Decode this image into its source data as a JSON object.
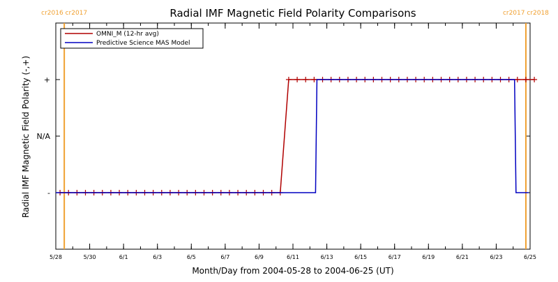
{
  "chart_data": {
    "type": "line",
    "title": "Radial IMF Magnetic Field Polarity Comparisons",
    "xlabel": "Month/Day from 2004-05-28 to 2004-06-25 (UT)",
    "ylabel": "Radial IMF Magnetic Field Polarity (-,+)",
    "x_range": [
      "2004-05-28",
      "2004-06-25"
    ],
    "x_tick_labels": [
      "5/28",
      "5/30",
      "6/1",
      "6/3",
      "6/5",
      "6/7",
      "6/9",
      "6/11",
      "6/13",
      "6/15",
      "6/17",
      "6/19",
      "6/21",
      "6/23",
      "6/25"
    ],
    "y_categories": [
      "-",
      "N/A",
      "+"
    ],
    "y_values": {
      "-": -1,
      "N/A": 0,
      "+": 1
    },
    "ylim": [
      -2,
      2
    ],
    "legend_position": "top-left",
    "carrington_markers": [
      {
        "x": "2004-05-28 12:00",
        "label": "cr2016 cr2017",
        "color": "#f0a030"
      },
      {
        "x": "2004-06-24 18:00",
        "label": "cr2017 cr2018",
        "color": "#f0a030"
      }
    ],
    "series": [
      {
        "name": "OMNI_M (12-hr avg)",
        "color": "#b00000",
        "marker": "+",
        "x": [
          "2004-05-28 06:00",
          "2004-05-28 18:00",
          "2004-05-29 06:00",
          "2004-05-29 18:00",
          "2004-05-30 06:00",
          "2004-05-30 18:00",
          "2004-05-31 06:00",
          "2004-05-31 18:00",
          "2004-06-01 06:00",
          "2004-06-01 18:00",
          "2004-06-02 06:00",
          "2004-06-02 18:00",
          "2004-06-03 06:00",
          "2004-06-03 18:00",
          "2004-06-04 06:00",
          "2004-06-04 18:00",
          "2004-06-05 06:00",
          "2004-06-05 18:00",
          "2004-06-06 06:00",
          "2004-06-06 18:00",
          "2004-06-07 06:00",
          "2004-06-07 18:00",
          "2004-06-08 06:00",
          "2004-06-08 18:00",
          "2004-06-09 06:00",
          "2004-06-09 18:00",
          "2004-06-10 06:00",
          "2004-06-10 18:00",
          "2004-06-11 06:00",
          "2004-06-11 18:00",
          "2004-06-12 06:00",
          "2004-06-12 18:00",
          "2004-06-13 06:00",
          "2004-06-13 18:00",
          "2004-06-14 06:00",
          "2004-06-14 18:00",
          "2004-06-15 06:00",
          "2004-06-15 18:00",
          "2004-06-16 06:00",
          "2004-06-16 18:00",
          "2004-06-17 06:00",
          "2004-06-17 18:00",
          "2004-06-18 06:00",
          "2004-06-18 18:00",
          "2004-06-19 06:00",
          "2004-06-19 18:00",
          "2004-06-20 06:00",
          "2004-06-20 18:00",
          "2004-06-21 06:00",
          "2004-06-21 18:00",
          "2004-06-22 06:00",
          "2004-06-22 18:00",
          "2004-06-23 06:00",
          "2004-06-23 18:00",
          "2004-06-24 06:00",
          "2004-06-24 18:00",
          "2004-06-25 06:00"
        ],
        "values": [
          -1,
          -1,
          -1,
          -1,
          -1,
          -1,
          -1,
          -1,
          -1,
          -1,
          -1,
          -1,
          -1,
          -1,
          -1,
          -1,
          -1,
          -1,
          -1,
          -1,
          -1,
          -1,
          -1,
          -1,
          -1,
          -1,
          -1,
          1,
          1,
          1,
          1,
          1,
          1,
          1,
          1,
          1,
          1,
          1,
          1,
          1,
          1,
          1,
          1,
          1,
          1,
          1,
          1,
          1,
          1,
          1,
          1,
          1,
          1,
          1,
          1,
          1,
          1
        ]
      },
      {
        "name": "Predictive Science MAS Model",
        "color": "#0000c0",
        "marker": "none",
        "x": [
          "2004-05-28 00:00",
          "2004-06-12 08:00",
          "2004-06-12 10:00",
          "2004-06-24 02:00",
          "2004-06-24 04:00",
          "2004-06-24 22:00"
        ],
        "values": [
          -1,
          -1,
          1,
          1,
          -1,
          -1
        ]
      }
    ]
  }
}
